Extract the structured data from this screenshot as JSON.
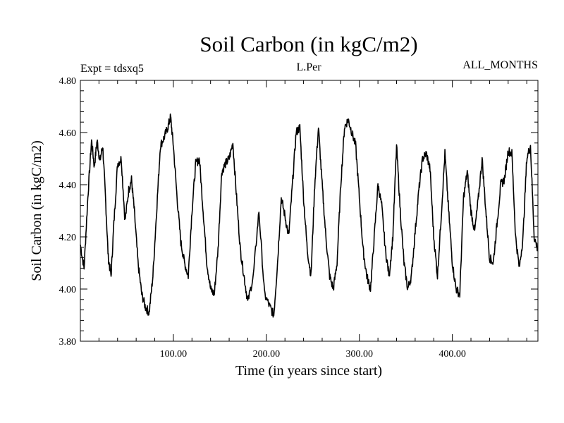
{
  "chart_data": {
    "type": "line",
    "title": "Soil Carbon (in kgC/m2)",
    "subtitle_left": "Expt = tdsxq5",
    "subtitle_center": "L.Per",
    "subtitle_right": "ALL_MONTHS",
    "xlabel": "Time (in years since start)",
    "ylabel": "Soil Carbon (in kgC/m2)",
    "xlim": [
      0,
      492
    ],
    "ylim": [
      3.8,
      4.8
    ],
    "xticks": [
      100,
      200,
      300,
      400
    ],
    "xtick_labels": [
      "100.00",
      "200.00",
      "300.00",
      "400.00"
    ],
    "yticks": [
      3.8,
      4.0,
      4.2,
      4.4,
      4.6,
      4.8
    ],
    "ytick_labels": [
      "3.80",
      "4.00",
      "4.20",
      "4.40",
      "4.60",
      "4.80"
    ],
    "grid": false,
    "series": [
      {
        "name": "Soil Carbon",
        "color": "#000000",
        "x": [
          0,
          4,
          8,
          12,
          15,
          18,
          21,
          24,
          27,
          30,
          33,
          36,
          40,
          44,
          48,
          52,
          55,
          58,
          62,
          66,
          70,
          74,
          78,
          82,
          86,
          90,
          94,
          97,
          100,
          104,
          108,
          112,
          116,
          120,
          124,
          128,
          132,
          136,
          140,
          144,
          148,
          152,
          156,
          160,
          164,
          168,
          172,
          176,
          180,
          186,
          192,
          198,
          204,
          208,
          212,
          216,
          220,
          224,
          228,
          232,
          236,
          240,
          244,
          248,
          252,
          256,
          260,
          264,
          268,
          272,
          276,
          280,
          284,
          288,
          292,
          296,
          300,
          304,
          308,
          312,
          316,
          320,
          324,
          328,
          332,
          336,
          340,
          344,
          348,
          352,
          356,
          360,
          364,
          368,
          372,
          376,
          380,
          384,
          388,
          392,
          396,
          400,
          404,
          408,
          412,
          416,
          420,
          424,
          428,
          432,
          436,
          440,
          444,
          448,
          452,
          456,
          460,
          464,
          468,
          472,
          476,
          480,
          484,
          488,
          492
        ],
        "values": [
          4.17,
          4.08,
          4.35,
          4.57,
          4.47,
          4.57,
          4.49,
          4.55,
          4.35,
          4.12,
          4.05,
          4.25,
          4.48,
          4.5,
          4.26,
          4.38,
          4.42,
          4.3,
          4.1,
          3.98,
          3.93,
          3.91,
          4.05,
          4.3,
          4.55,
          4.58,
          4.62,
          4.66,
          4.55,
          4.35,
          4.18,
          4.1,
          4.05,
          4.3,
          4.48,
          4.5,
          4.3,
          4.1,
          4.0,
          3.98,
          4.15,
          4.45,
          4.48,
          4.5,
          4.56,
          4.35,
          4.15,
          4.05,
          3.95,
          4.05,
          4.3,
          3.98,
          3.93,
          3.9,
          4.1,
          4.35,
          4.28,
          4.2,
          4.4,
          4.6,
          4.62,
          4.35,
          4.15,
          4.05,
          4.4,
          4.62,
          4.4,
          4.2,
          4.05,
          4.0,
          4.1,
          4.4,
          4.62,
          4.65,
          4.6,
          4.55,
          4.35,
          4.15,
          4.05,
          4.0,
          4.2,
          4.4,
          4.32,
          4.15,
          4.05,
          4.2,
          4.55,
          4.3,
          4.1,
          4.0,
          4.05,
          4.22,
          4.38,
          4.5,
          4.52,
          4.46,
          4.2,
          4.05,
          4.28,
          4.52,
          4.3,
          4.1,
          4.0,
          3.98,
          4.35,
          4.45,
          4.3,
          4.22,
          4.35,
          4.5,
          4.3,
          4.12,
          4.1,
          4.25,
          4.4,
          4.42,
          4.53,
          4.52,
          4.2,
          4.08,
          4.2,
          4.5,
          4.55,
          4.2,
          4.15
        ]
      }
    ]
  }
}
